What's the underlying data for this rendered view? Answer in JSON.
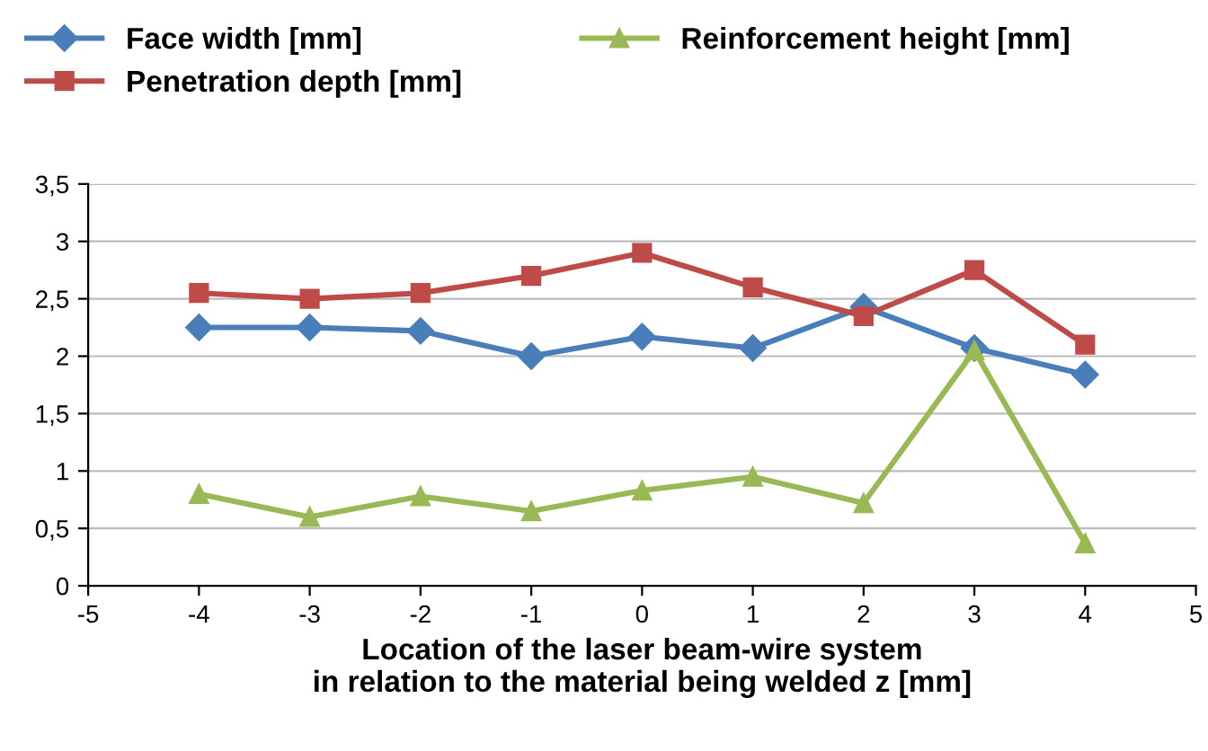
{
  "chart_data": {
    "type": "line",
    "xlabel": "Location of the laser beam-wire system\nin relation to the material being welded z [mm]",
    "x": [
      -4,
      -3,
      -2,
      -1,
      0,
      1,
      2,
      3,
      4
    ],
    "series": [
      {
        "name": "Face width [mm]",
        "color": "#4a7ebb",
        "marker": "diamond",
        "values": [
          2.25,
          2.25,
          2.22,
          2.0,
          2.17,
          2.07,
          2.43,
          2.07,
          1.84
        ]
      },
      {
        "name": "Penetration depth [mm]",
        "color": "#be4b48",
        "marker": "square",
        "values": [
          2.55,
          2.5,
          2.55,
          2.7,
          2.9,
          2.6,
          2.35,
          2.75,
          2.1
        ]
      },
      {
        "name": "Reinforcement height [mm]",
        "color": "#98b954",
        "marker": "triangle",
        "values": [
          0.8,
          0.6,
          0.78,
          0.65,
          0.83,
          0.95,
          0.72,
          2.05,
          0.37
        ]
      }
    ],
    "xlim": [
      -5,
      5
    ],
    "xticks": [
      -5,
      -4,
      -3,
      -2,
      -1,
      0,
      1,
      2,
      3,
      4,
      5
    ],
    "ylim": [
      0,
      3.5
    ],
    "yticks": [
      0,
      {
        "value": 0.5,
        "label": "0,5"
      },
      1,
      {
        "value": 1.5,
        "label": "1,5"
      },
      2,
      {
        "value": 2.5,
        "label": "2,5"
      },
      3,
      {
        "value": 3.5,
        "label": "3,5"
      }
    ],
    "grid": "y",
    "legend": "top",
    "line_style": "solid"
  }
}
